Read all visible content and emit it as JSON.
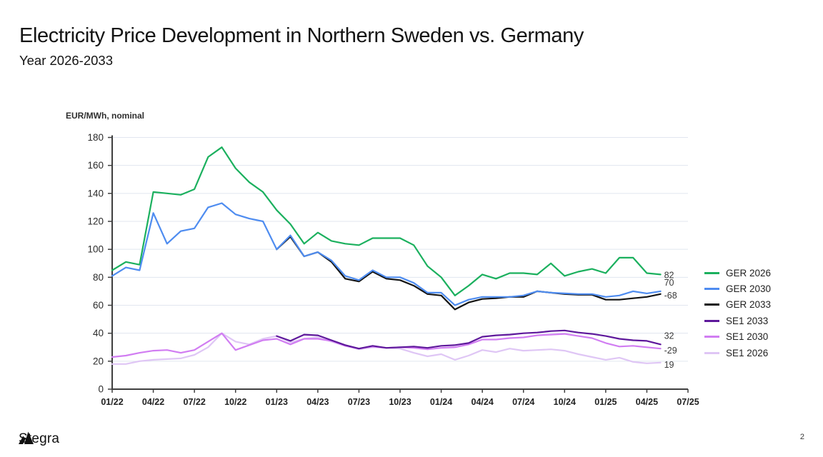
{
  "slide": {
    "title": "Electricity Price Development in Northern Sweden vs. Germany",
    "subtitle": "Year 2026-2033",
    "logo_text": "Stegra",
    "page_number": "2"
  },
  "chart_data": {
    "type": "line",
    "title": "Electricity Price Development in Northern Sweden vs. Germany",
    "ylabel": "EUR/MWh, nominal",
    "xlabel": "",
    "ylim": [
      0,
      180
    ],
    "ytick_step": 20,
    "grid": "horizontal",
    "legend_position": "right",
    "x_tick_labels": [
      "01/22",
      "04/22",
      "07/22",
      "10/22",
      "01/23",
      "04/23",
      "07/23",
      "10/23",
      "01/24",
      "04/24",
      "07/24",
      "10/24",
      "01/25",
      "04/25",
      "07/25"
    ],
    "x": [
      "01/22",
      "02/22",
      "03/22",
      "04/22",
      "05/22",
      "06/22",
      "07/22",
      "08/22",
      "09/22",
      "10/22",
      "11/22",
      "12/22",
      "01/23",
      "02/23",
      "03/23",
      "04/23",
      "05/23",
      "06/23",
      "07/23",
      "08/23",
      "09/23",
      "10/23",
      "11/23",
      "12/23",
      "01/24",
      "02/24",
      "03/24",
      "04/24",
      "05/24",
      "06/24",
      "07/24",
      "08/24",
      "09/24",
      "10/24",
      "11/24",
      "12/24",
      "01/25",
      "02/25",
      "03/25",
      "04/25",
      "05/25"
    ],
    "series": [
      {
        "name": "GER 2026",
        "color": "#1bb05e",
        "values": [
          85,
          91,
          89,
          141,
          140,
          139,
          143,
          166,
          173,
          158,
          148,
          141,
          128,
          118,
          104,
          112,
          106,
          104,
          103,
          108,
          108,
          108,
          103,
          88,
          80,
          67,
          74,
          82,
          79,
          83,
          83,
          82,
          90,
          81,
          84,
          86,
          83,
          94,
          94,
          83,
          82
        ]
      },
      {
        "name": "GER 2030",
        "color": "#4e8cf0",
        "values": [
          81,
          87,
          85,
          126,
          104,
          113,
          115,
          130,
          133,
          125,
          122,
          120,
          100,
          110,
          95,
          98,
          92,
          81,
          78,
          85,
          80,
          80,
          76,
          69,
          69,
          60,
          64,
          66,
          66,
          66,
          67,
          70,
          69,
          68.5,
          68,
          68,
          66,
          67,
          70,
          68.5,
          70
        ]
      },
      {
        "name": "GER 2033",
        "color": "#131313",
        "values": [
          null,
          null,
          null,
          null,
          null,
          null,
          null,
          null,
          null,
          null,
          null,
          null,
          100,
          109,
          95,
          98,
          91,
          79,
          77,
          84,
          79,
          78,
          74,
          68,
          67,
          57,
          62,
          64.5,
          65,
          66,
          66,
          70,
          69,
          68,
          67.5,
          67.5,
          64,
          64,
          65,
          66,
          68
        ]
      },
      {
        "name": "SE1 2033",
        "color": "#5e189b",
        "values": [
          null,
          null,
          null,
          null,
          null,
          null,
          null,
          null,
          null,
          null,
          null,
          null,
          38,
          34.5,
          39,
          38.5,
          35,
          31.5,
          29,
          31,
          29.5,
          30,
          30.5,
          29.5,
          31,
          31.5,
          33,
          37.5,
          38.5,
          39,
          40,
          40.5,
          41.5,
          42,
          40.5,
          39.5,
          38,
          36,
          35,
          34.5,
          32
        ]
      },
      {
        "name": "SE1 2030",
        "color": "#d17df2",
        "values": [
          23,
          24,
          26,
          27.5,
          28,
          26,
          28,
          34,
          40,
          28,
          31.5,
          35,
          36,
          32,
          36,
          36,
          34.5,
          31,
          29,
          30.5,
          29.5,
          30,
          29.5,
          28.5,
          29.5,
          30,
          32,
          35.5,
          35.5,
          36.5,
          37,
          38.5,
          39,
          39.5,
          38,
          36.5,
          33,
          30.5,
          31,
          30,
          29
        ]
      },
      {
        "name": "SE1 2026",
        "color": "#dfc6f5",
        "values": [
          18,
          18,
          20,
          21,
          21.5,
          22,
          24.5,
          30,
          40,
          34,
          32,
          36,
          38,
          33.5,
          36,
          37,
          34,
          31,
          28.5,
          30,
          29.5,
          29,
          26,
          23.5,
          25,
          21,
          24,
          28,
          26.5,
          29,
          27.5,
          28,
          28.5,
          27.5,
          25,
          23,
          21,
          22.5,
          19.5,
          18.5,
          19
        ]
      }
    ],
    "end_labels": [
      {
        "text": "82",
        "value": 82,
        "dy": 1
      },
      {
        "text": "70",
        "value": 70,
        "dy": -12
      },
      {
        "text": "-68",
        "value": 68,
        "dy": 2
      },
      {
        "text": "32",
        "value": 32,
        "dy": -12
      },
      {
        "text": "-29",
        "value": 29,
        "dy": 3
      },
      {
        "text": "19",
        "value": 19,
        "dy": 3
      }
    ],
    "draw_order": [
      "SE1 2026",
      "SE1 2030",
      "SE1 2033",
      "GER 2026",
      "GER 2033",
      "GER 2030"
    ],
    "colors": {
      "grid": "#e1e6ef",
      "axis": "#3f3f3f",
      "tick_text": "#2b2b2b",
      "end_label_text": "#3a3a3a"
    }
  }
}
